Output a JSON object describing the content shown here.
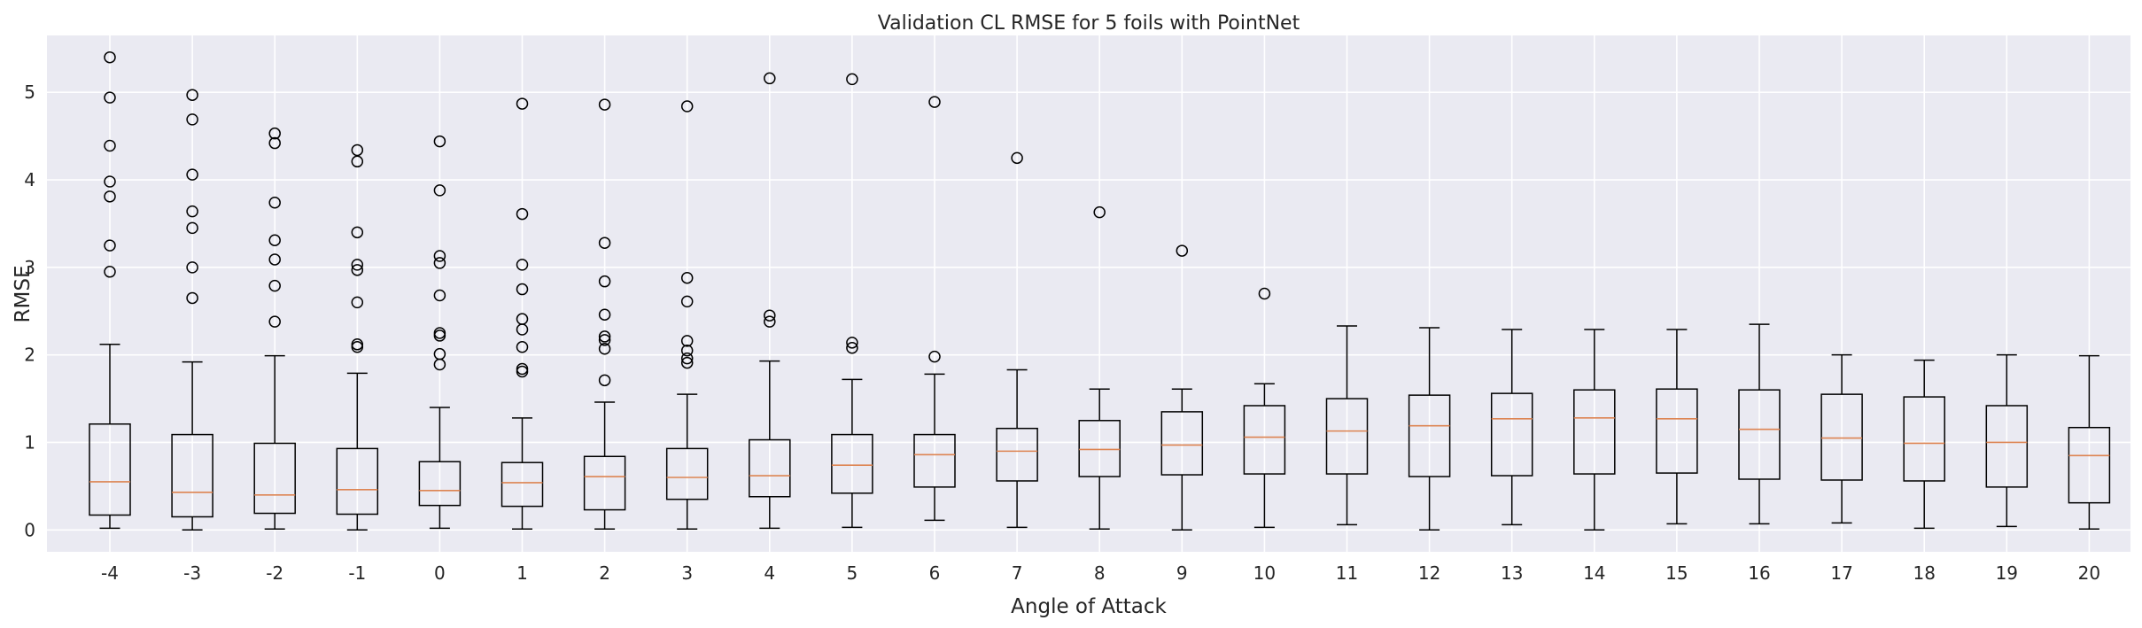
{
  "chart_data": {
    "type": "box",
    "title": "Validation CL RMSE for 5 foils with PointNet",
    "xlabel": "Angle of Attack",
    "ylabel": "RMSE",
    "ylim": [
      -0.25,
      5.65
    ],
    "yticks": [
      0,
      1,
      2,
      3,
      4,
      5
    ],
    "grid": true,
    "colors": {
      "background": "#eaeaf2",
      "grid": "#ffffff",
      "box": "#000000",
      "median": "#dd8452"
    },
    "categories": [
      "-4",
      "-3",
      "-2",
      "-1",
      "0",
      "1",
      "2",
      "3",
      "4",
      "5",
      "6",
      "7",
      "8",
      "9",
      "10",
      "11",
      "12",
      "13",
      "14",
      "15",
      "16",
      "17",
      "18",
      "19",
      "20"
    ],
    "boxes": [
      {
        "whislo": 0.02,
        "q1": 0.17,
        "med": 0.55,
        "q3": 1.21,
        "whishi": 2.12,
        "fliers": [
          2.95,
          3.25,
          3.81,
          3.98,
          4.39,
          4.94,
          5.4
        ]
      },
      {
        "whislo": 0.0,
        "q1": 0.15,
        "med": 0.43,
        "q3": 1.09,
        "whishi": 1.92,
        "fliers": [
          2.65,
          3.0,
          3.45,
          3.64,
          4.06,
          4.69,
          4.97
        ]
      },
      {
        "whislo": 0.01,
        "q1": 0.19,
        "med": 0.4,
        "q3": 0.99,
        "whishi": 1.99,
        "fliers": [
          2.38,
          2.79,
          3.09,
          3.31,
          3.74,
          4.42,
          4.53
        ]
      },
      {
        "whislo": 0.0,
        "q1": 0.18,
        "med": 0.46,
        "q3": 0.93,
        "whishi": 1.79,
        "fliers": [
          2.09,
          2.12,
          2.6,
          2.97,
          3.03,
          3.4,
          4.21,
          4.34
        ]
      },
      {
        "whislo": 0.02,
        "q1": 0.28,
        "med": 0.45,
        "q3": 0.78,
        "whishi": 1.4,
        "fliers": [
          1.89,
          2.01,
          2.22,
          2.25,
          2.68,
          3.05,
          3.13,
          3.88,
          4.44
        ]
      },
      {
        "whislo": 0.01,
        "q1": 0.27,
        "med": 0.54,
        "q3": 0.77,
        "whishi": 1.28,
        "fliers": [
          1.81,
          1.84,
          2.09,
          2.29,
          2.41,
          2.75,
          3.03,
          3.61,
          4.87
        ]
      },
      {
        "whislo": 0.01,
        "q1": 0.23,
        "med": 0.61,
        "q3": 0.84,
        "whishi": 1.46,
        "fliers": [
          1.71,
          2.07,
          2.17,
          2.21,
          2.46,
          2.84,
          3.28,
          4.86
        ]
      },
      {
        "whislo": 0.01,
        "q1": 0.35,
        "med": 0.6,
        "q3": 0.93,
        "whishi": 1.55,
        "fliers": [
          1.91,
          1.96,
          2.05,
          2.16,
          2.61,
          2.88,
          4.84
        ]
      },
      {
        "whislo": 0.02,
        "q1": 0.38,
        "med": 0.62,
        "q3": 1.03,
        "whishi": 1.93,
        "fliers": [
          2.38,
          2.45,
          5.16
        ]
      },
      {
        "whislo": 0.03,
        "q1": 0.42,
        "med": 0.74,
        "q3": 1.09,
        "whishi": 1.72,
        "fliers": [
          2.08,
          2.14,
          5.15
        ]
      },
      {
        "whislo": 0.11,
        "q1": 0.49,
        "med": 0.86,
        "q3": 1.09,
        "whishi": 1.78,
        "fliers": [
          1.98,
          4.89
        ]
      },
      {
        "whislo": 0.03,
        "q1": 0.56,
        "med": 0.9,
        "q3": 1.16,
        "whishi": 1.83,
        "fliers": [
          4.25
        ]
      },
      {
        "whislo": 0.01,
        "q1": 0.61,
        "med": 0.92,
        "q3": 1.25,
        "whishi": 1.61,
        "fliers": [
          3.63
        ]
      },
      {
        "whislo": 0.0,
        "q1": 0.63,
        "med": 0.97,
        "q3": 1.35,
        "whishi": 1.61,
        "fliers": [
          3.19
        ]
      },
      {
        "whislo": 0.03,
        "q1": 0.64,
        "med": 1.06,
        "q3": 1.42,
        "whishi": 1.67,
        "fliers": [
          2.7
        ]
      },
      {
        "whislo": 0.06,
        "q1": 0.64,
        "med": 1.13,
        "q3": 1.5,
        "whishi": 2.33,
        "fliers": []
      },
      {
        "whislo": 0.0,
        "q1": 0.61,
        "med": 1.19,
        "q3": 1.54,
        "whishi": 2.31,
        "fliers": []
      },
      {
        "whislo": 0.06,
        "q1": 0.62,
        "med": 1.27,
        "q3": 1.56,
        "whishi": 2.29,
        "fliers": []
      },
      {
        "whislo": 0.0,
        "q1": 0.64,
        "med": 1.28,
        "q3": 1.6,
        "whishi": 2.29,
        "fliers": []
      },
      {
        "whislo": 0.07,
        "q1": 0.65,
        "med": 1.27,
        "q3": 1.61,
        "whishi": 2.29,
        "fliers": []
      },
      {
        "whislo": 0.07,
        "q1": 0.58,
        "med": 1.15,
        "q3": 1.6,
        "whishi": 2.35,
        "fliers": []
      },
      {
        "whislo": 0.08,
        "q1": 0.57,
        "med": 1.05,
        "q3": 1.55,
        "whishi": 2.0,
        "fliers": []
      },
      {
        "whislo": 0.02,
        "q1": 0.56,
        "med": 0.99,
        "q3": 1.52,
        "whishi": 1.94,
        "fliers": []
      },
      {
        "whislo": 0.04,
        "q1": 0.49,
        "med": 1.0,
        "q3": 1.42,
        "whishi": 2.0,
        "fliers": []
      },
      {
        "whislo": 0.01,
        "q1": 0.31,
        "med": 0.85,
        "q3": 1.17,
        "whishi": 1.99,
        "fliers": []
      }
    ]
  }
}
